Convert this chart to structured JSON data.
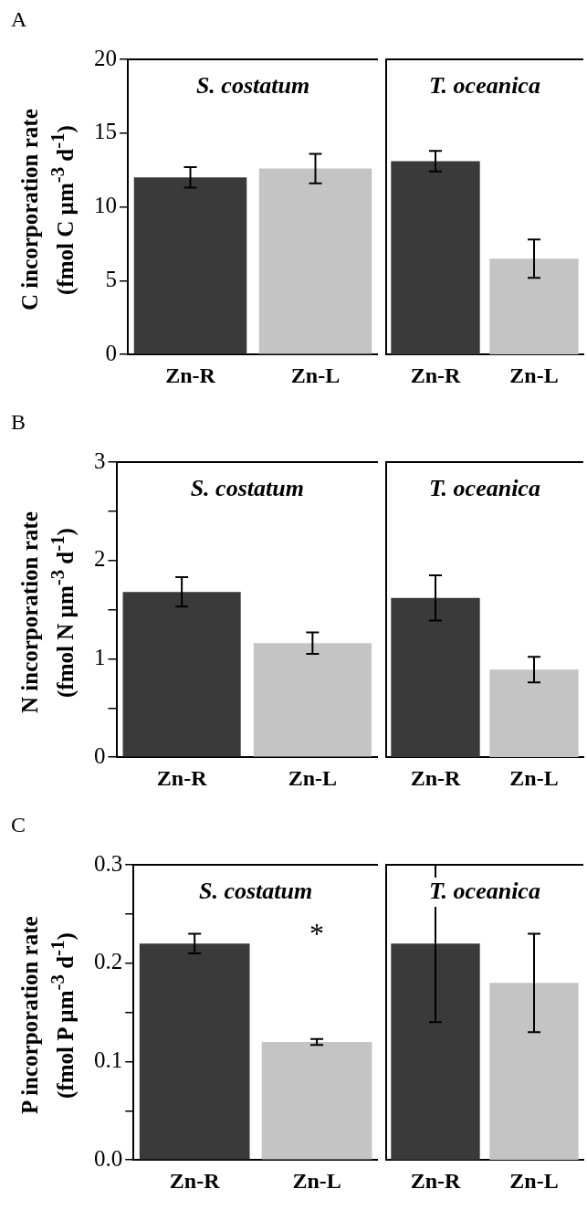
{
  "chart_data": [
    {
      "type": "bar",
      "title": "S. costatum",
      "ylabel": "C incorporation rate\n(fmol C µm$^{-3}$ d$^{-1}$)",
      "annotations": [
        "A"
      ],
      "categories": [
        "Zn-R",
        "Zn-L"
      ],
      "values": [
        12.0,
        12.6
      ],
      "errors": [
        0.7,
        1.0
      ],
      "colors": [
        "#3a3a3a",
        "#c4c4c4"
      ],
      "ylim": [
        0,
        20
      ],
      "yticks": [
        0,
        5,
        10,
        15,
        20
      ],
      "grid": false,
      "legend": false
    },
    {
      "type": "bar",
      "title": "T. oceanica",
      "categories": [
        "Zn-R",
        "Zn-L"
      ],
      "values": [
        13.1,
        6.5
      ],
      "errors": [
        0.7,
        1.3
      ],
      "colors": [
        "#3a3a3a",
        "#c4c4c4"
      ],
      "ylim": [
        0,
        20
      ],
      "tick_labels": "x",
      "grid": false,
      "legend": false
    },
    {
      "type": "bar",
      "title": "S. costatum",
      "ylabel": "N incorporation rate\n(fmol N µm$^{-3}$ d$^{-1}$)",
      "annotations": [
        "B"
      ],
      "categories": [
        "Zn-R",
        "Zn-L"
      ],
      "values": [
        1.68,
        1.16
      ],
      "errors": [
        0.15,
        0.11
      ],
      "colors": [
        "#3a3a3a",
        "#c4c4c4"
      ],
      "ylim": [
        0,
        3
      ],
      "yticks": [
        0,
        {
          "value": 0.5,
          "label": null
        },
        1,
        {
          "value": 1.5,
          "label": null
        },
        2,
        {
          "value": 2.5,
          "label": null
        },
        3
      ],
      "grid": false,
      "legend": false
    },
    {
      "type": "bar",
      "title": "T. oceanica",
      "categories": [
        "Zn-R",
        "Zn-L"
      ],
      "values": [
        1.62,
        0.89
      ],
      "errors": [
        0.23,
        0.13
      ],
      "colors": [
        "#3a3a3a",
        "#c4c4c4"
      ],
      "ylim": [
        0,
        3
      ],
      "tick_labels": "x",
      "grid": false,
      "legend": false
    },
    {
      "type": "bar",
      "title": "S. costatum",
      "ylabel": "P incorporation rate\n(fmol P µm$^{-3}$ d$^{-1}$)",
      "annotations": [
        "C",
        "*"
      ],
      "categories": [
        "Zn-R",
        "Zn-L"
      ],
      "values": [
        0.22,
        0.12
      ],
      "errors": [
        0.01,
        0.003
      ],
      "colors": [
        "#3a3a3a",
        "#c4c4c4"
      ],
      "ylim": [
        0,
        0.3
      ],
      "yticks": [
        {
          "value": 0,
          "label": "0.0"
        },
        {
          "value": 0.05,
          "label": null
        },
        0.1,
        {
          "value": 0.15,
          "label": null
        },
        0.2,
        {
          "value": 0.25,
          "label": null
        },
        0.3
      ],
      "grid": false,
      "legend": false
    },
    {
      "type": "bar",
      "title": "T. oceanica",
      "categories": [
        "Zn-R",
        "Zn-L"
      ],
      "values": [
        0.22,
        0.18
      ],
      "errors": [
        0.08,
        0.05
      ],
      "colors": [
        "#3a3a3a",
        "#c4c4c4"
      ],
      "ylim": [
        0,
        0.3
      ],
      "tick_labels": "x",
      "grid": false,
      "legend": false
    }
  ]
}
